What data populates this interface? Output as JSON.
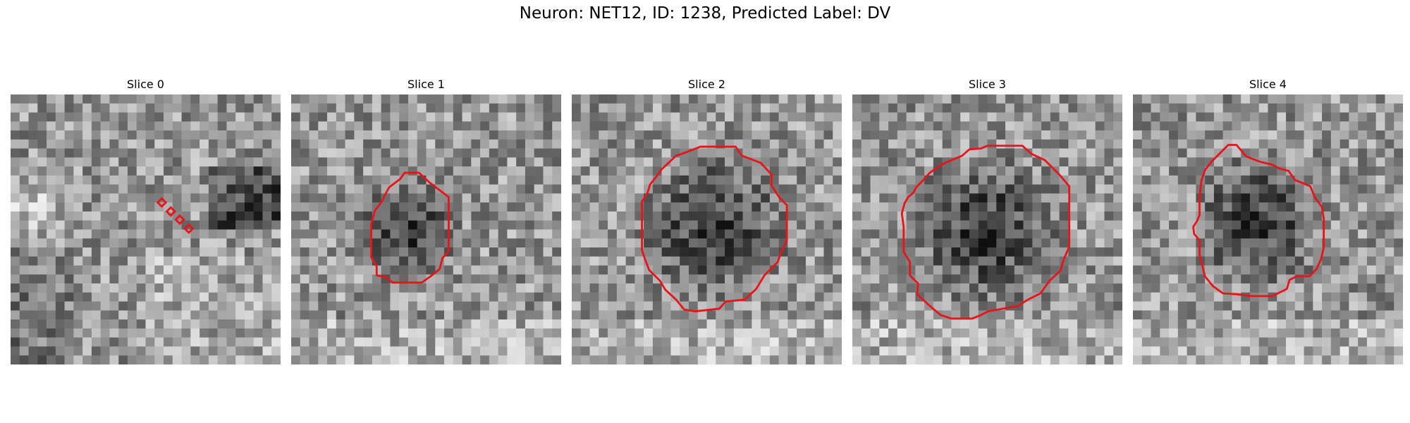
{
  "figure": {
    "title": "Neuron: NET12, ID: 1238, Predicted Label: DV",
    "contour_color": "#e8141a",
    "panels": [
      {
        "title": "Slice 0",
        "seed": 11,
        "dark_region": "streak",
        "contour": "point-markers"
      },
      {
        "title": "Slice 1",
        "seed": 23,
        "dark_region": "blob",
        "contour": "polygon"
      },
      {
        "title": "Slice 2",
        "seed": 37,
        "dark_region": "blob",
        "contour": "polygon"
      },
      {
        "title": "Slice 3",
        "seed": 53,
        "dark_region": "blob",
        "contour": "polygon"
      },
      {
        "title": "Slice 4",
        "seed": 71,
        "dark_region": "blob",
        "contour": "polygon"
      }
    ]
  }
}
